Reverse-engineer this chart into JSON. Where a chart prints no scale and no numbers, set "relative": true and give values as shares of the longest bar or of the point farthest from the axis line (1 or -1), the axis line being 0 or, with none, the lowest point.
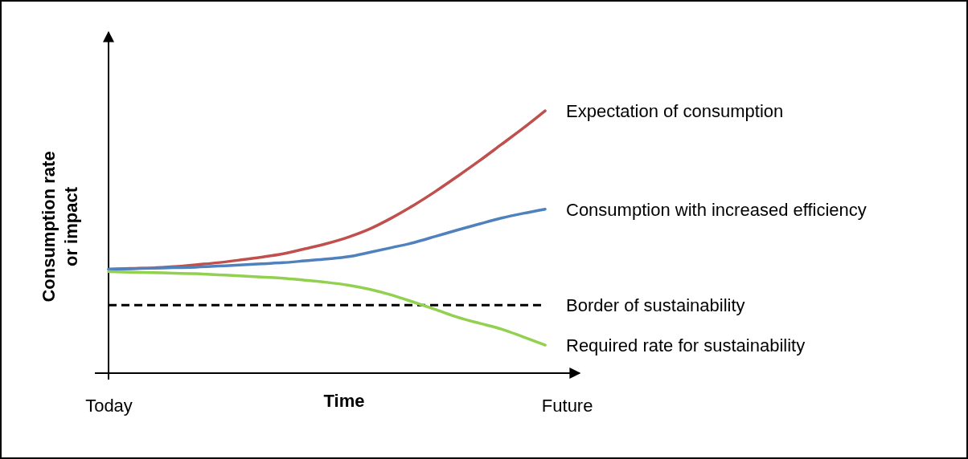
{
  "chart_data": {
    "type": "line",
    "relative": true,
    "xlabel": "Time",
    "ylabel": "Consumption rate\nor impact",
    "categories": [
      "Today",
      null,
      null,
      null,
      null,
      null,
      null,
      null,
      null,
      null,
      null,
      null,
      null,
      null,
      null,
      null,
      null,
      null,
      null,
      null,
      null,
      "Future"
    ],
    "tick_labels": "x",
    "legend": false,
    "marker": "none",
    "line_style": "solid",
    "series": [
      {
        "name": "Expectation of consumption",
        "color": "#c0504d",
        "values": [
          0.396,
          0.399,
          0.401,
          0.406,
          0.413,
          0.421,
          0.431,
          0.442,
          0.455,
          0.474,
          0.494,
          0.519,
          0.551,
          0.593,
          0.641,
          0.694,
          0.751,
          0.81,
          0.872,
          0.934,
          1,
          null
        ]
      },
      {
        "name": "Consumption with increased efficiency",
        "color": "#4f81bd",
        "values": [
          0.396,
          0.398,
          0.4,
          0.402,
          0.404,
          0.408,
          0.412,
          0.417,
          0.421,
          0.428,
          0.435,
          0.444,
          0.461,
          0.479,
          0.498,
          0.522,
          0.546,
          0.569,
          0.591,
          0.609,
          0.625,
          null
        ]
      },
      {
        "name": "Required rate for sustainability",
        "color": "#92d050",
        "values": [
          0.387,
          0.385,
          0.383,
          0.381,
          0.379,
          0.375,
          0.371,
          0.366,
          0.362,
          0.354,
          0.346,
          0.335,
          0.319,
          0.297,
          0.27,
          0.242,
          0.213,
          0.19,
          0.168,
          0.138,
          0.107,
          null
        ]
      }
    ],
    "ref_lines": [
      {
        "axis": "y",
        "value": 0.259,
        "label": "Border of sustainability",
        "color": "#000000",
        "line_style": "dashed"
      }
    ]
  }
}
